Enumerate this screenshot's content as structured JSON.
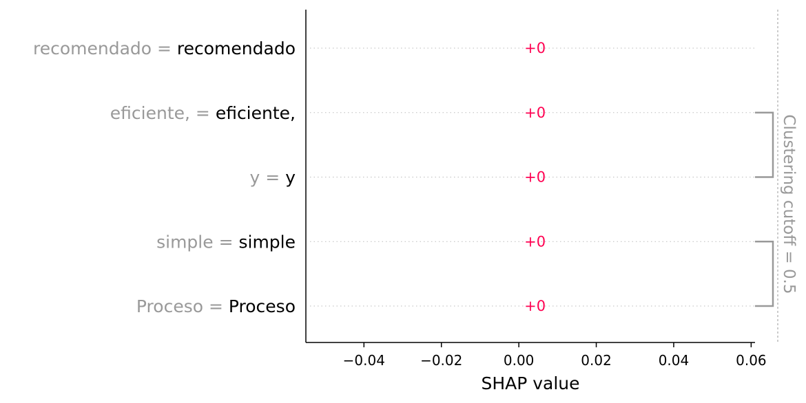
{
  "chart_data": {
    "type": "bar",
    "title": "",
    "xlabel": "SHAP value",
    "ylabel": "",
    "xlim": [
      -0.055,
      0.061
    ],
    "xticks": [
      -0.04,
      -0.02,
      0.0,
      0.02,
      0.04,
      0.06
    ],
    "xtick_labels": [
      "−0.04",
      "−0.02",
      "0.00",
      "0.02",
      "0.04",
      "0.06"
    ],
    "features": [
      {
        "name": "recomendado",
        "value": "recomendado",
        "shap": 0,
        "label": "+0"
      },
      {
        "name": "eficiente, ",
        "value": "eficiente,",
        "shap": 0,
        "label": "+0"
      },
      {
        "name": "y ",
        "value": "y",
        "shap": 0,
        "label": "+0"
      },
      {
        "name": "simple ",
        "value": "simple",
        "shap": 0,
        "label": "+0"
      },
      {
        "name": "Proceso ",
        "value": "Proceso",
        "shap": 0,
        "label": "+0"
      }
    ],
    "clusters": [
      {
        "features": [
          "eficiente, ",
          "y "
        ]
      },
      {
        "features": [
          "simple ",
          "Proceso "
        ]
      }
    ],
    "cutoff_label": "Clustering cutoff = 0.5",
    "grid": false,
    "colors": {
      "positive": "#ff0051",
      "feature_name": "#999999",
      "feature_value": "#000000",
      "dotted_line": "#bbbbbb",
      "bracket": "#999999",
      "cutoff_line": "#cccccc",
      "axis": "#000000"
    }
  }
}
